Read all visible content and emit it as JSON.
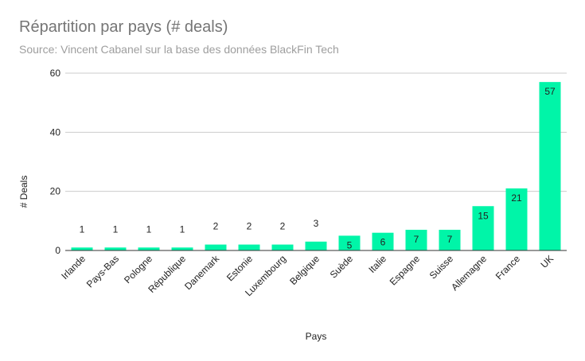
{
  "chart_data": {
    "type": "bar",
    "title": "Répartition par pays (# deals)",
    "subtitle": "Source: Vincent Cabanel sur la base des données BlackFin Tech",
    "xlabel": "Pays",
    "ylabel": "# Deals",
    "ylim": [
      0,
      60
    ],
    "yticks": [
      0,
      20,
      40,
      60
    ],
    "grid": true,
    "categories": [
      "Irlande",
      "Pays-Bas",
      "Pologne",
      "République",
      "Danemark",
      "Estonie",
      "Luxembourg",
      "Belgique",
      "Suède",
      "Italie",
      "Espagne",
      "Suisse",
      "Allemagne",
      "France",
      "UK"
    ],
    "values": [
      1,
      1,
      1,
      1,
      2,
      2,
      2,
      3,
      5,
      6,
      7,
      7,
      15,
      21,
      57
    ],
    "data_labels": [
      "1",
      "1",
      "1",
      "1",
      "2",
      "2",
      "2",
      "3",
      "5",
      "6",
      "7",
      "7",
      "15",
      "21",
      "57"
    ],
    "colors": {
      "bar": "#00f5a8",
      "grid": "#cccccc",
      "axis": "#333333"
    }
  }
}
